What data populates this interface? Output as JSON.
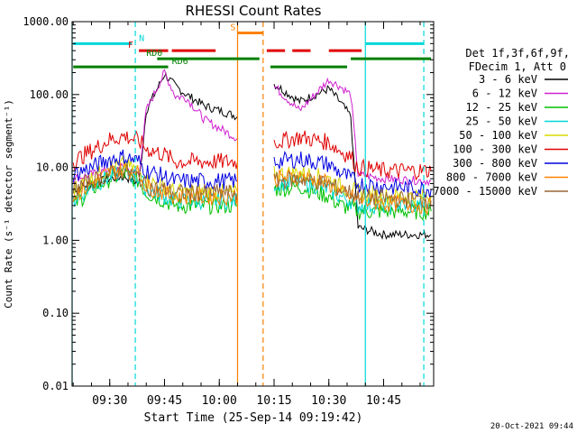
{
  "chart_data": {
    "type": "line",
    "title": "RHESSI Count Rates",
    "xlabel": "Start Time (25-Sep-14 09:19:42)",
    "ylabel": "Count Rate (s⁻¹ detector segment⁻¹)",
    "y_scale": "log",
    "ylim": [
      0.01,
      1000
    ],
    "xlim": [
      "09:19:42",
      "10:58:42"
    ],
    "x_ticks": [
      "09:30",
      "09:45",
      "10:00",
      "10:15",
      "10:30",
      "10:45"
    ],
    "y_ticks": [
      "1000.00",
      "100.00",
      "10.00",
      "1.00",
      "0.10",
      "0.01"
    ],
    "footer_date": "20-Oct-2021 09:44",
    "legend_header": [
      "Det 1f,3f,6f,9f,",
      "FDecim 1, Att 0"
    ],
    "series": [
      {
        "name": "3 - 6 keV",
        "color": "#000000",
        "values": [
          5,
          6,
          7,
          7.5,
          6,
          60,
          190,
          130,
          100,
          70,
          50,
          null,
          null,
          null,
          140,
          80,
          120,
          80,
          50,
          1.5,
          1.2,
          1.2
        ]
      },
      {
        "name": "6 - 12 keV",
        "color": "#d020d0",
        "values": [
          7,
          8,
          9.5,
          10,
          8,
          60,
          200,
          95,
          90,
          45,
          25,
          null,
          null,
          null,
          130,
          60,
          160,
          130,
          100,
          8,
          7,
          6.5
        ]
      },
      {
        "name": "12 - 25 keV",
        "color": "#00c000",
        "values": [
          3,
          5,
          7,
          8,
          6.5,
          4.5,
          3.5,
          3,
          3,
          3,
          3,
          null,
          null,
          null,
          5,
          5.5,
          4,
          3,
          2.8,
          2.5,
          2.5,
          2.5
        ]
      },
      {
        "name": "25 - 50 keV",
        "color": "#00d8d8",
        "values": [
          3.5,
          5.5,
          7.5,
          8.5,
          7,
          5,
          4,
          3.5,
          3.5,
          3.5,
          3.5,
          null,
          null,
          null,
          6,
          6.5,
          5,
          4,
          3.5,
          3,
          3,
          3
        ]
      },
      {
        "name": "50 - 100 keV",
        "color": "#d8d800",
        "values": [
          5,
          7,
          10,
          11,
          9,
          6.5,
          5.5,
          4.5,
          4.5,
          4.5,
          4.5,
          null,
          null,
          null,
          8,
          8.5,
          7,
          5.5,
          5,
          4.5,
          4,
          4
        ]
      },
      {
        "name": "100 - 300 keV",
        "color": "#e00000",
        "values": [
          12,
          17,
          24,
          27,
          23,
          18,
          15,
          12,
          12,
          12,
          12,
          null,
          null,
          null,
          22,
          26,
          22,
          17,
          14,
          10,
          9,
          9
        ]
      },
      {
        "name": "300 - 800 keV",
        "color": "#0000e0",
        "values": [
          8,
          10,
          13,
          14,
          12,
          9,
          7.5,
          6.5,
          6.5,
          6.5,
          6.5,
          null,
          null,
          null,
          12,
          13,
          11,
          8.5,
          7,
          6,
          5.5,
          5
        ]
      },
      {
        "name": "800 - 7000 keV",
        "color": "#ff8000",
        "values": [
          4,
          6,
          8.5,
          9.5,
          8,
          5.5,
          4.5,
          4,
          4,
          4,
          4,
          null,
          null,
          null,
          7,
          7.5,
          6,
          4.5,
          4,
          3.5,
          3.2,
          3
        ]
      },
      {
        "name": "7000 - 15000 keV",
        "color": "#996633",
        "values": [
          5,
          6.5,
          8,
          9,
          7.5,
          5.5,
          5,
          4.5,
          4.5,
          4.5,
          4.5,
          null,
          null,
          null,
          6.5,
          7,
          6,
          5,
          4.5,
          4,
          3.8,
          3.5
        ]
      }
    ],
    "x": [
      "09:20",
      "09:25",
      "09:30",
      "09:34",
      "09:38",
      "09:40",
      "09:45",
      "09:48",
      "09:51",
      "09:56",
      "10:05",
      "10:07",
      "10:11",
      "10:13",
      "10:15",
      "10:22",
      "10:30",
      "10:33",
      "10:36",
      "10:38",
      "10:45",
      "10:58"
    ],
    "vertical_markers": [
      {
        "time": "09:19:42",
        "color": "#00d8d8",
        "style": "solid"
      },
      {
        "time": "09:37",
        "color": "#00d8d8",
        "style": "dashed"
      },
      {
        "time": "10:05",
        "color": "#ff8000",
        "style": "solid"
      },
      {
        "time": "10:12",
        "color": "#ff8000",
        "style": "dashed"
      },
      {
        "time": "10:40",
        "color": "#00d8d8",
        "style": "solid"
      },
      {
        "time": "10:56",
        "color": "#00d8d8",
        "style": "dashed"
      }
    ],
    "flag_bars": [
      {
        "label": "N",
        "color": "#00d8d8",
        "level": 500,
        "segments": [
          [
            "09:20",
            "09:36"
          ],
          [
            "10:40",
            "10:56"
          ]
        ],
        "label_at": "09:38"
      },
      {
        "label": "S",
        "color": "#ff8000",
        "level": 700,
        "segments": [
          [
            "10:05",
            "10:12"
          ]
        ],
        "label_at": "10:03"
      },
      {
        "label": "F",
        "color": "#e00000",
        "level": 400,
        "segments": [
          [
            "09:38",
            "09:46"
          ],
          [
            "09:47",
            "09:59"
          ],
          [
            "10:13",
            "10:18"
          ],
          [
            "10:20",
            "10:25"
          ],
          [
            "10:30",
            "10:39"
          ]
        ],
        "label_at": "09:35"
      },
      {
        "label": "RD0",
        "color": "#008000",
        "level": 310,
        "segments": [
          [
            "09:43",
            "10:11"
          ],
          [
            "10:36",
            "10:58"
          ]
        ],
        "label_at": "09:40"
      },
      {
        "label": "RD6",
        "color": "#008000",
        "level": 240,
        "segments": [
          [
            "09:20",
            "09:46"
          ],
          [
            "10:14",
            "10:35"
          ]
        ],
        "label_at": "09:47"
      }
    ]
  }
}
